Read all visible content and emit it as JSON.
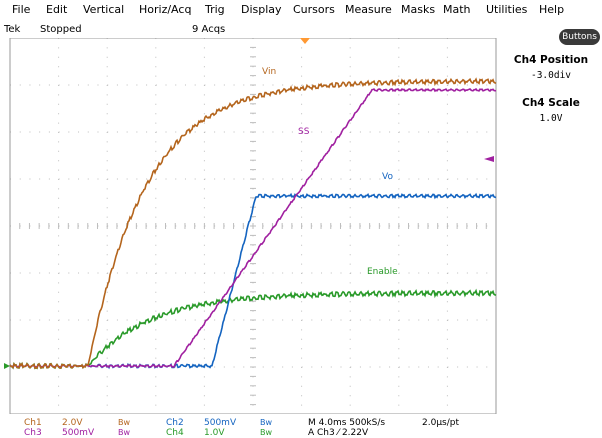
{
  "menu": [
    "File",
    "Edit",
    "Vertical",
    "Horiz/Acq",
    "Trig",
    "Display",
    "Cursors",
    "Measure",
    "Masks",
    "Math",
    "Utilities",
    "Help"
  ],
  "status": {
    "brand": "Tek",
    "state": "Stopped",
    "acqs": "9 Acqs"
  },
  "buttons_label": "Buttons",
  "side_panel": {
    "position_label": "Ch4 Position",
    "position_value": "-3.0div",
    "scale_label": "Ch4 Scale",
    "scale_value": "1.0V"
  },
  "colors": {
    "ch1": "#b4651d",
    "ch2": "#1464c0",
    "ch3": "#a020a0",
    "ch4": "#2a9a2a",
    "grid": "#bdbdbd",
    "trigger": "#ff9933"
  },
  "traces": {
    "vin_label": "Vin",
    "ss_label": "SS",
    "vo_label": "Vo",
    "enable_label": "Enable"
  },
  "readouts": {
    "ch1": {
      "name": "Ch1",
      "scale": "2.0V",
      "bw": "Bw"
    },
    "ch2": {
      "name": "Ch2",
      "scale": "500mV",
      "bw": "Bw"
    },
    "ch3": {
      "name": "Ch3",
      "scale": "500mV",
      "bw": "Bw"
    },
    "ch4": {
      "name": "Ch4",
      "scale": "1.0V",
      "bw": "Bw"
    },
    "timebase": "M 4.0ms 500kS/s",
    "per_pt": "2.0µs/pt",
    "trigger": "A  Ch3  ⁄  2.22V"
  }
}
